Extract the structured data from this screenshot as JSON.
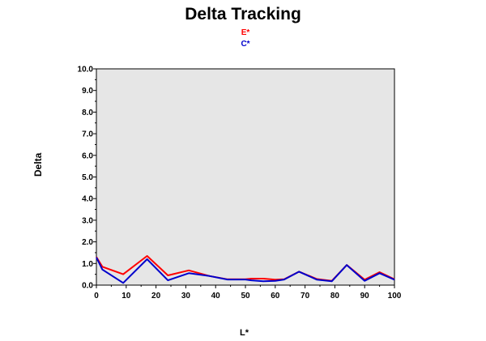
{
  "chart_data": {
    "type": "line",
    "title": "Delta Tracking",
    "xlabel": "L*",
    "ylabel": "Delta",
    "xlim": [
      0,
      100
    ],
    "ylim": [
      0,
      10
    ],
    "x_ticks": [
      "0",
      "10",
      "20",
      "30",
      "40",
      "50",
      "60",
      "70",
      "80",
      "90",
      "100"
    ],
    "y_ticks": [
      "0.0",
      "1.0",
      "2.0",
      "3.0",
      "4.0",
      "5.0",
      "6.0",
      "7.0",
      "8.0",
      "9.0",
      "10.0"
    ],
    "grid": false,
    "plot_background": "#e6e6e6",
    "legend_position": "top-center",
    "series": [
      {
        "name": "E*",
        "color": "#ff0000",
        "x": [
          0,
          2,
          9,
          17,
          24,
          31,
          38,
          44,
          50,
          52,
          56,
          60,
          63,
          68,
          74,
          79,
          84,
          90,
          95,
          100
        ],
        "y": [
          1.3,
          0.85,
          0.5,
          1.35,
          0.45,
          0.68,
          0.42,
          0.27,
          0.27,
          0.3,
          0.3,
          0.25,
          0.27,
          0.62,
          0.28,
          0.2,
          0.93,
          0.25,
          0.6,
          0.27
        ]
      },
      {
        "name": "C*",
        "color": "#0000cc",
        "x": [
          0,
          2,
          9,
          17,
          24,
          31,
          38,
          44,
          50,
          52,
          56,
          60,
          63,
          68,
          74,
          79,
          84,
          90,
          95,
          100
        ],
        "y": [
          1.28,
          0.72,
          0.1,
          1.2,
          0.22,
          0.55,
          0.42,
          0.26,
          0.26,
          0.22,
          0.18,
          0.2,
          0.26,
          0.62,
          0.25,
          0.18,
          0.93,
          0.2,
          0.55,
          0.25
        ]
      }
    ]
  }
}
